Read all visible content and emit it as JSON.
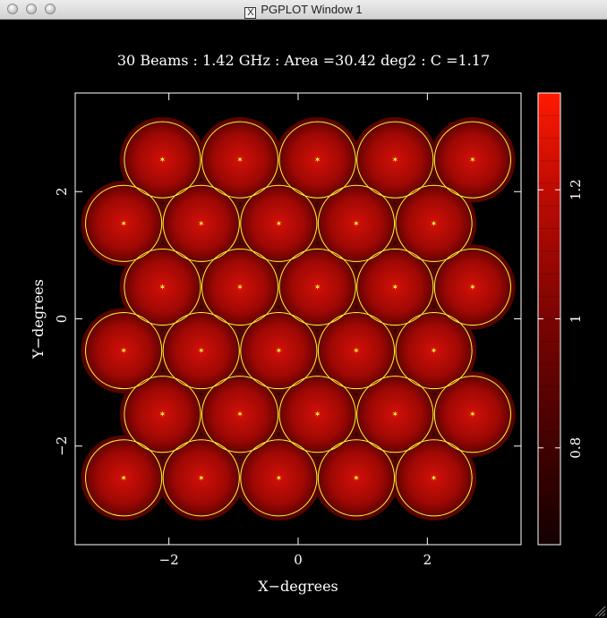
{
  "window": {
    "title": "PGPLOT Window 1",
    "app_icon": "x11-icon"
  },
  "chart_data": {
    "type": "heatmap",
    "title": "30 Beams : 1.42 GHz : Area =30.42 deg2 : C =1.17",
    "xlabel": "X−degrees",
    "ylabel": "Y−degrees",
    "xlim": [
      -3.45,
      3.45
    ],
    "ylim": [
      -3.55,
      3.55
    ],
    "xticks": [
      -2,
      0,
      2
    ],
    "xtick_labels": [
      "−2",
      "0",
      "2"
    ],
    "yticks": [
      -2,
      0,
      2
    ],
    "ytick_labels": [
      "−2",
      "0",
      "2"
    ],
    "colorbar": {
      "range": [
        0.65,
        1.35
      ],
      "ticks": [
        0.8,
        1,
        1.2
      ],
      "tick_labels": [
        "0.8",
        "1",
        "1.2"
      ]
    },
    "beam_radius_deg": 0.59,
    "beam_centers": [
      [
        -2.1,
        2.5
      ],
      [
        -0.9,
        2.5
      ],
      [
        0.3,
        2.5
      ],
      [
        1.5,
        2.5
      ],
      [
        2.7,
        2.5
      ],
      [
        -2.7,
        1.5
      ],
      [
        -1.5,
        1.5
      ],
      [
        -0.3,
        1.5
      ],
      [
        0.9,
        1.5
      ],
      [
        2.1,
        1.5
      ],
      [
        -2.1,
        0.5
      ],
      [
        -0.9,
        0.5
      ],
      [
        0.3,
        0.5
      ],
      [
        1.5,
        0.5
      ],
      [
        2.7,
        0.5
      ],
      [
        -2.7,
        -0.5
      ],
      [
        -1.5,
        -0.5
      ],
      [
        -0.3,
        -0.5
      ],
      [
        0.9,
        -0.5
      ],
      [
        2.1,
        -0.5
      ],
      [
        -2.1,
        -1.5
      ],
      [
        -0.9,
        -1.5
      ],
      [
        0.3,
        -1.5
      ],
      [
        1.5,
        -1.5
      ],
      [
        2.7,
        -1.5
      ],
      [
        -2.7,
        -2.5
      ],
      [
        -1.5,
        -2.5
      ],
      [
        -0.3,
        -2.5
      ],
      [
        0.9,
        -2.5
      ],
      [
        2.1,
        -2.5
      ]
    ],
    "colors": {
      "background": "#000000",
      "frame": "#ffffff",
      "beam_circle": "#ffff33",
      "beam_peak": "#d21008",
      "beam_mid": "#9e0804",
      "beam_edge": "#5a0200",
      "colorbar_low": "#140000",
      "colorbar_high": "#ff1a00"
    }
  }
}
